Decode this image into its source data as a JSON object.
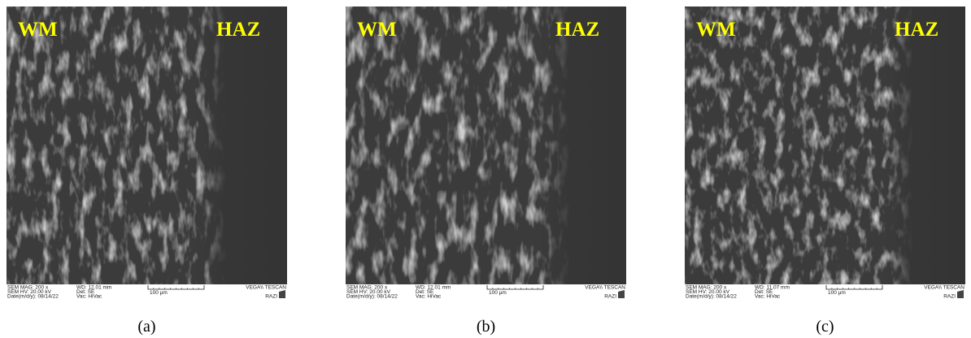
{
  "panels": [
    {
      "left_label": "WM",
      "right_label": "HAZ",
      "caption": "(a)",
      "info": {
        "mag": "SEM MAG: 200 x",
        "wd": "WD: 12.01 mm",
        "hv": "SEM HV: 20.00 kV",
        "det": "Det: SE",
        "date": "Date(m/d/y): 08/14/22",
        "vac": "Vac: HiVac",
        "scale": "100 μm",
        "brand": "VEGA\\\\ TESCAN",
        "lab": "RAZI"
      }
    },
    {
      "left_label": "WM",
      "right_label": "HAZ",
      "caption": "(b)",
      "info": {
        "mag": "SEM MAG: 200 x",
        "wd": "WD: 12.01 mm",
        "hv": "SEM HV: 20.00 kV",
        "det": "Det: SE",
        "date": "Date(m/d/y): 08/14/22",
        "vac": "Vac: HiVac",
        "scale": "100 μm",
        "brand": "VEGA\\\\ TESCAN",
        "lab": "RAZI"
      }
    },
    {
      "left_label": "WM",
      "right_label": "HAZ",
      "caption": "(c)",
      "info": {
        "mag": "SEM MAG: 200 x",
        "wd": "WD: 11.07 mm",
        "hv": "SEM HV: 20.00 kV",
        "det": "Det: SE",
        "date": "Date(m/d/y): 08/14/22",
        "vac": "Vac: HiVac",
        "scale": "100 μm",
        "brand": "VEGA\\\\ TESCAN",
        "lab": "RAZI"
      }
    }
  ]
}
